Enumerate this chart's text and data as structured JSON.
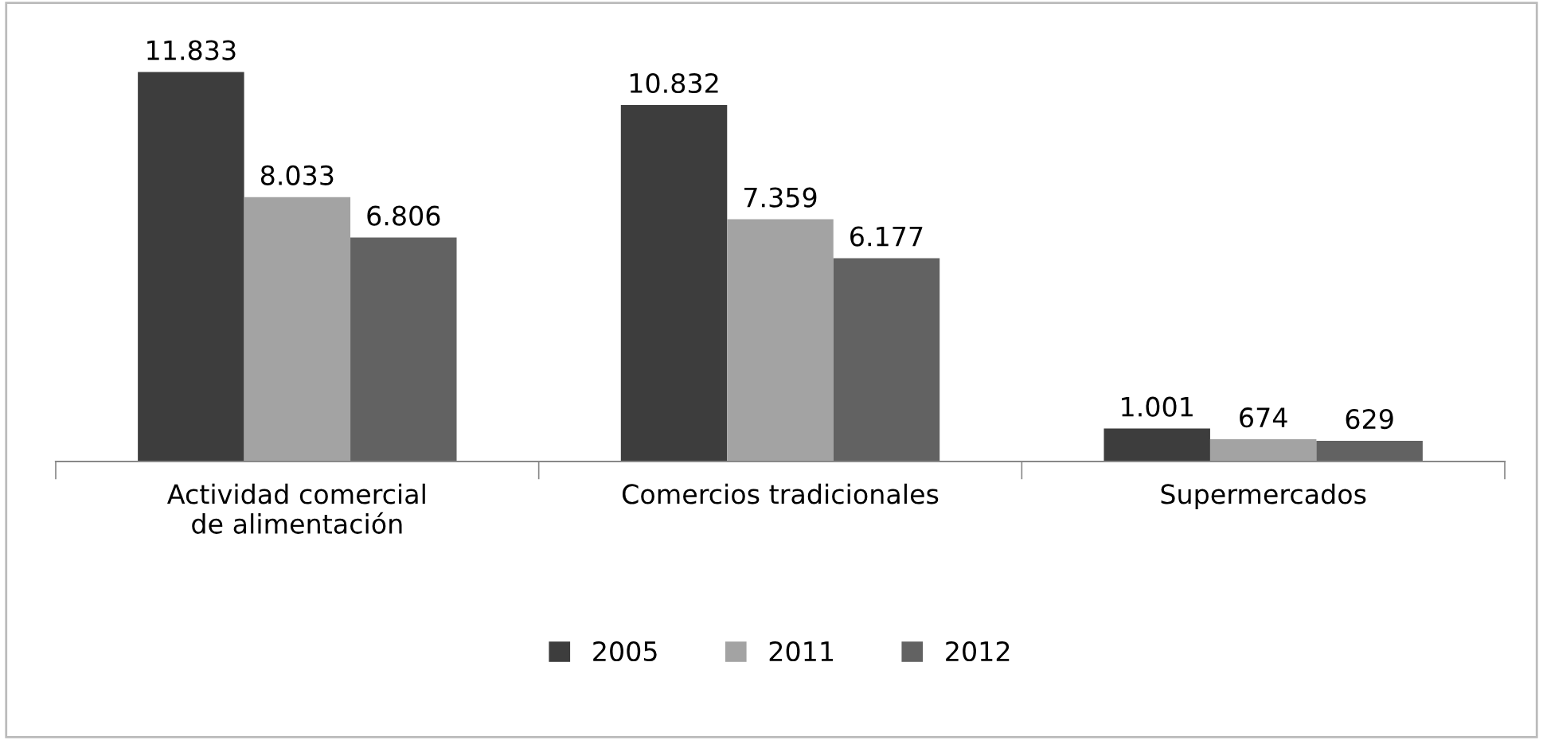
{
  "chart_data": {
    "type": "bar",
    "categories": [
      "Actividad comercial\nde alimentación",
      "Comercios tradicionales",
      "Supermercados"
    ],
    "series": [
      {
        "name": "2005",
        "color": "#3d3d3d",
        "values": [
          11833,
          10832,
          1001
        ],
        "value_labels": [
          "11.833",
          "10.832",
          "1.001"
        ]
      },
      {
        "name": "2011",
        "color": "#a3a3a3",
        "values": [
          8033,
          7359,
          674
        ],
        "value_labels": [
          "8.033",
          "7.359",
          "674"
        ]
      },
      {
        "name": "2012",
        "color": "#626262",
        "values": [
          6806,
          6177,
          629
        ],
        "value_labels": [
          "6.806",
          "6.177",
          "629"
        ]
      }
    ],
    "legend": "bottom"
  }
}
